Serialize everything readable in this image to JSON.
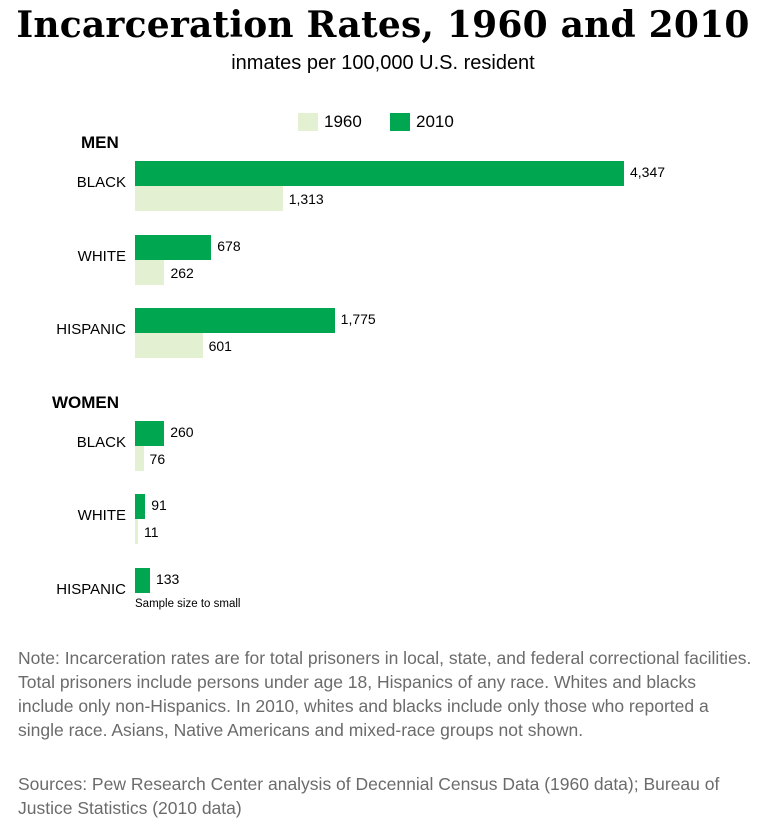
{
  "title": "Incarceration Rates, 1960 and 2010",
  "subtitle": "inmates per 100,000 U.S. resident",
  "colors": {
    "y2010": "#00a650",
    "y1960": "#e4f0d2"
  },
  "chart_data": {
    "type": "bar",
    "orientation": "horizontal",
    "legend": [
      "1960",
      "2010"
    ],
    "legend_position": "top",
    "groups": [
      {
        "label": "MEN",
        "categories": [
          {
            "label": "BLACK",
            "v2010": 4347,
            "v2010_text": "4,347",
            "v1960": 1313,
            "v1960_text": "1,313"
          },
          {
            "label": "WHITE",
            "v2010": 678,
            "v2010_text": "678",
            "v1960": 262,
            "v1960_text": "262"
          },
          {
            "label": "HISPANIC",
            "v2010": 1775,
            "v2010_text": "1,775",
            "v1960": 601,
            "v1960_text": "601"
          }
        ]
      },
      {
        "label": "WOMEN",
        "categories": [
          {
            "label": "BLACK",
            "v2010": 260,
            "v2010_text": "260",
            "v1960": 76,
            "v1960_text": "76"
          },
          {
            "label": "WHITE",
            "v2010": 91,
            "v2010_text": "91",
            "v1960": 11,
            "v1960_text": "11"
          },
          {
            "label": "HISPANIC",
            "v2010": 133,
            "v2010_text": "133",
            "v1960": null,
            "v1960_text": null,
            "note": "Sample size to small"
          }
        ]
      }
    ]
  },
  "note": "Note: Incarceration rates are for total prisoners in local, state, and federal correctional facilities. Total prisoners include persons under age 18, Hispanics of any race. Whites and blacks include only non-Hispanics. In 2010, whites and blacks include only those who reported a single race. Asians, Native Americans and mixed-race groups not shown.",
  "sources": "Sources: Pew Research Center analysis of Decennial Census Data (1960 data); Bureau of Justice Statistics (2010 data)"
}
